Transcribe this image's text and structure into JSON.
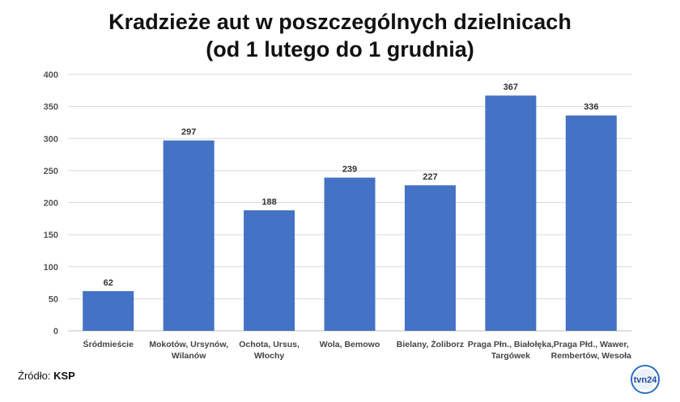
{
  "title_line1": "Kradzieże aut w poszczególnych dzielnicach",
  "title_line2": "(od 1 lutego do 1 grudnia)",
  "source_label": "Źródło:",
  "source_value": "KSP",
  "logo_text": "tvn24",
  "colors": {
    "bar": "#4472c4",
    "grid": "#d9d9d9",
    "axis": "#bfbfbf"
  },
  "chart_data": {
    "type": "bar",
    "title": "Kradzieże aut w poszczególnych dzielnicach (od 1 lutego do 1 grudnia)",
    "xlabel": "",
    "ylabel": "",
    "ylim": [
      0,
      400
    ],
    "yticks": [
      0,
      50,
      100,
      150,
      200,
      250,
      300,
      350,
      400
    ],
    "grid": true,
    "legend": "none",
    "categories": [
      [
        "Śródmieście"
      ],
      [
        "Mokotów, Ursynów,",
        "Wilanów"
      ],
      [
        "Ochota, Ursus,",
        "Włochy"
      ],
      [
        "Wola, Bemowo"
      ],
      [
        "Bielany, Żoliborz"
      ],
      [
        "Praga Płn., Białołęka,",
        "Targówek"
      ],
      [
        "Praga Płd., Wawer,",
        "Rembertów, Wesoła"
      ]
    ],
    "values": [
      62,
      297,
      188,
      239,
      227,
      367,
      336
    ]
  }
}
